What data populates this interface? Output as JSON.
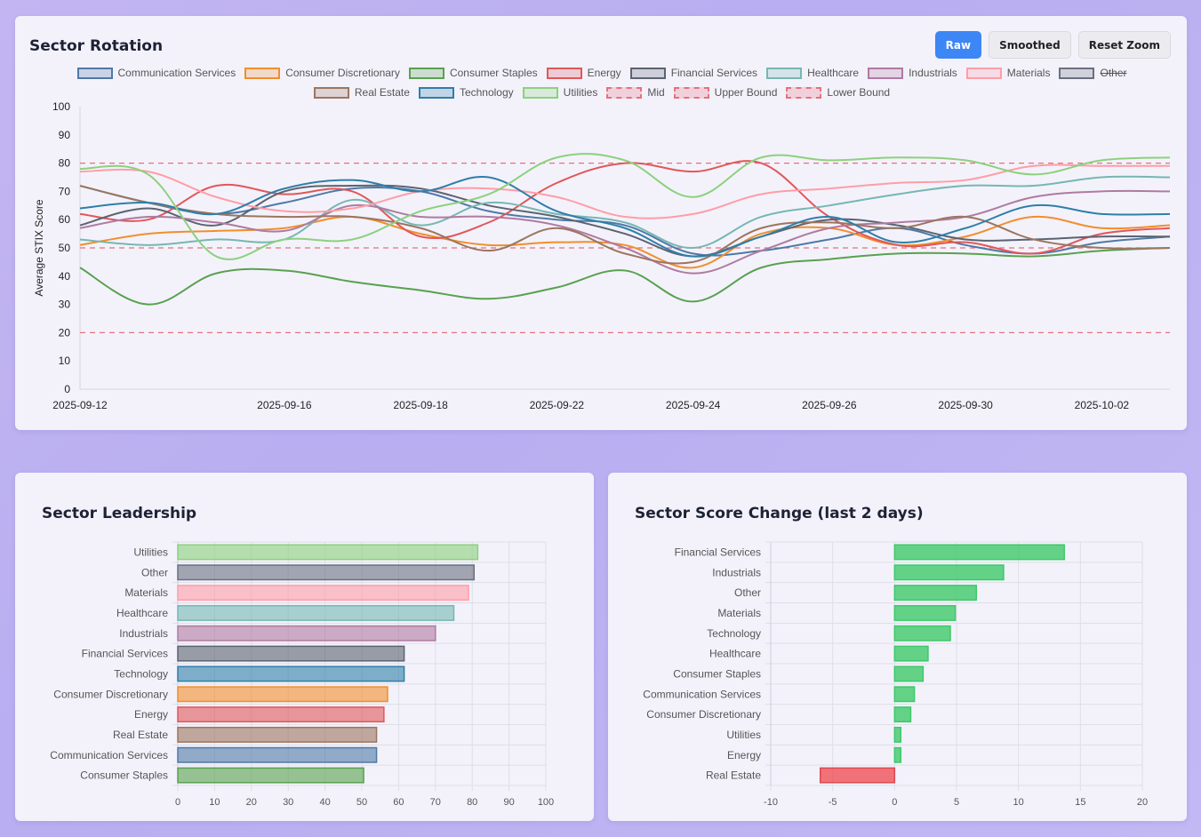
{
  "rotation": {
    "title": "Sector Rotation",
    "buttons": {
      "raw": "Raw",
      "smoothed": "Smoothed",
      "reset_zoom": "Reset Zoom"
    }
  },
  "leadership": {
    "title": "Sector Leadership"
  },
  "change": {
    "title": "Sector Score Change (last 2 days)"
  },
  "colors": {
    "Communication Services": "#4e79a7",
    "Consumer Discretionary": "#f28e2b",
    "Consumer Staples": "#59a14f",
    "Energy": "#e15759",
    "Financial Services": "#5c6370",
    "Healthcare": "#76b7b2",
    "Industrials": "#b07aa1",
    "Materials": "#ff9da7",
    "Other": "#6b6f80",
    "Real Estate": "#9c755f",
    "Technology": "#2e7fa8",
    "Utilities": "#8cd17d",
    "positive": "#3ec96a",
    "negative": "#ee5a5f",
    "threshold": "#e8707a"
  },
  "legend": [
    {
      "label": "Communication Services",
      "key": "Communication Services",
      "dashed": false,
      "hidden": false
    },
    {
      "label": "Consumer Discretionary",
      "key": "Consumer Discretionary",
      "dashed": false,
      "hidden": false
    },
    {
      "label": "Consumer Staples",
      "key": "Consumer Staples",
      "dashed": false,
      "hidden": false
    },
    {
      "label": "Energy",
      "key": "Energy",
      "dashed": false,
      "hidden": false
    },
    {
      "label": "Financial Services",
      "key": "Financial Services",
      "dashed": false,
      "hidden": false
    },
    {
      "label": "Healthcare",
      "key": "Healthcare",
      "dashed": false,
      "hidden": false
    },
    {
      "label": "Industrials",
      "key": "Industrials",
      "dashed": false,
      "hidden": false
    },
    {
      "label": "Materials",
      "key": "Materials",
      "dashed": false,
      "hidden": false
    },
    {
      "label": "Other",
      "key": "Other",
      "dashed": false,
      "hidden": true
    },
    {
      "label": "Real Estate",
      "key": "Real Estate",
      "dashed": false,
      "hidden": false
    },
    {
      "label": "Technology",
      "key": "Technology",
      "dashed": false,
      "hidden": false
    },
    {
      "label": "Utilities",
      "key": "Utilities",
      "dashed": false,
      "hidden": false
    },
    {
      "label": "Mid",
      "key": "threshold",
      "dashed": true,
      "hidden": false
    },
    {
      "label": "Upper Bound",
      "key": "threshold",
      "dashed": true,
      "hidden": false
    },
    {
      "label": "Lower Bound",
      "key": "threshold",
      "dashed": true,
      "hidden": false
    }
  ],
  "chart_data": [
    {
      "type": "line",
      "title": "Sector Rotation",
      "xlabel": "",
      "ylabel": "Average STIX Score",
      "ylim": [
        0,
        100
      ],
      "yticks": [
        0,
        10,
        20,
        30,
        40,
        50,
        60,
        70,
        80,
        90,
        100
      ],
      "x": [
        "2025-09-12",
        "2025-09-13",
        "2025-09-15",
        "2025-09-16",
        "2025-09-17",
        "2025-09-18",
        "2025-09-19",
        "2025-09-22",
        "2025-09-23",
        "2025-09-24",
        "2025-09-25",
        "2025-09-26",
        "2025-09-29",
        "2025-09-30",
        "2025-10-01",
        "2025-10-02",
        "2025-10-03"
      ],
      "x_tick_labels": [
        "2025-09-12",
        "2025-09-16",
        "2025-09-18",
        "2025-09-22",
        "2025-09-24",
        "2025-09-26",
        "2025-09-30",
        "2025-10-02"
      ],
      "series": [
        {
          "name": "Communication Services",
          "values": [
            72,
            66,
            62,
            66,
            71,
            70,
            63,
            60,
            58,
            48,
            49,
            53,
            57,
            51,
            48,
            52,
            54
          ]
        },
        {
          "name": "Consumer Discretionary",
          "values": [
            51,
            55,
            56,
            57,
            61,
            55,
            51,
            52,
            51,
            43,
            55,
            57,
            51,
            54,
            61,
            57,
            58
          ]
        },
        {
          "name": "Consumer Staples",
          "values": [
            43,
            30,
            41,
            42,
            38,
            35,
            32,
            36,
            42,
            31,
            43,
            46,
            48,
            48,
            47,
            49,
            50
          ]
        },
        {
          "name": "Energy",
          "values": [
            62,
            60,
            72,
            69,
            70,
            54,
            59,
            73,
            80,
            77,
            80,
            61,
            51,
            52,
            48,
            55,
            57
          ]
        },
        {
          "name": "Financial Services",
          "values": [
            58,
            64,
            58,
            70,
            72,
            71,
            65,
            61,
            55,
            47,
            54,
            60,
            58,
            53,
            53,
            54,
            54
          ]
        },
        {
          "name": "Healthcare",
          "values": [
            53,
            51,
            53,
            53,
            67,
            58,
            66,
            62,
            59,
            50,
            61,
            65,
            69,
            72,
            72,
            75,
            75
          ]
        },
        {
          "name": "Industrials",
          "values": [
            57,
            61,
            59,
            56,
            65,
            61,
            61,
            58,
            50,
            41,
            49,
            57,
            59,
            61,
            68,
            70,
            70
          ]
        },
        {
          "name": "Materials",
          "values": [
            77,
            77,
            68,
            63,
            64,
            70,
            71,
            68,
            61,
            62,
            69,
            71,
            73,
            74,
            79,
            79,
            79
          ]
        },
        {
          "name": "Real Estate",
          "values": [
            72,
            66,
            62,
            61,
            61,
            57,
            49,
            57,
            48,
            45,
            57,
            59,
            57,
            61,
            53,
            50,
            50
          ]
        },
        {
          "name": "Technology",
          "values": [
            64,
            66,
            62,
            71,
            74,
            70,
            75,
            63,
            57,
            47,
            54,
            61,
            52,
            57,
            65,
            62,
            62
          ]
        },
        {
          "name": "Utilities",
          "values": [
            78,
            76,
            47,
            53,
            53,
            63,
            69,
            82,
            81,
            68,
            82,
            81,
            82,
            81,
            76,
            81,
            82
          ]
        }
      ],
      "thresholds": [
        {
          "name": "Upper Bound",
          "value": 80
        },
        {
          "name": "Mid",
          "value": 50
        },
        {
          "name": "Lower Bound",
          "value": 20
        }
      ]
    },
    {
      "type": "bar",
      "orientation": "horizontal",
      "title": "Sector Leadership",
      "xlim": [
        0,
        100
      ],
      "xticks": [
        0,
        10,
        20,
        30,
        40,
        50,
        60,
        70,
        80,
        90,
        100
      ],
      "categories": [
        "Utilities",
        "Other",
        "Materials",
        "Healthcare",
        "Industrials",
        "Financial Services",
        "Technology",
        "Consumer Discretionary",
        "Energy",
        "Real Estate",
        "Communication Services",
        "Consumer Staples"
      ],
      "values": [
        81.5,
        80.5,
        79,
        75,
        70,
        61.5,
        61.5,
        57,
        56,
        54,
        54,
        50.5
      ]
    },
    {
      "type": "bar",
      "orientation": "horizontal",
      "title": "Sector Score Change (last 2 days)",
      "xlim": [
        -10,
        20
      ],
      "xticks": [
        -10,
        -5,
        0,
        5,
        10,
        15,
        20
      ],
      "categories": [
        "Financial Services",
        "Industrials",
        "Other",
        "Materials",
        "Technology",
        "Healthcare",
        "Consumer Staples",
        "Communication Services",
        "Consumer Discretionary",
        "Utilities",
        "Energy",
        "Real Estate"
      ],
      "values": [
        13.7,
        8.8,
        6.6,
        4.9,
        4.5,
        2.7,
        2.3,
        1.6,
        1.3,
        0.5,
        0.5,
        -6
      ]
    }
  ]
}
